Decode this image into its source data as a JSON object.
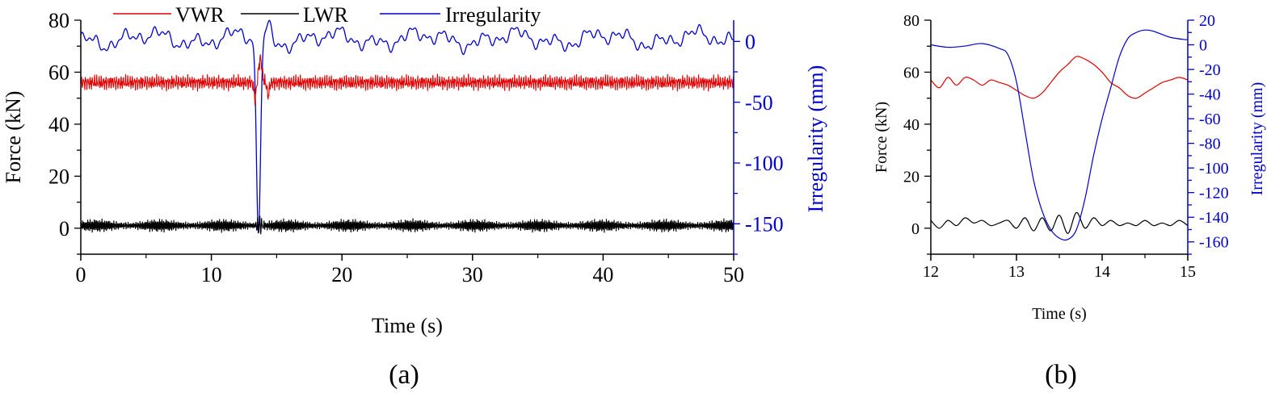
{
  "legend": {
    "vwr": "VWR",
    "lwr": "LWR",
    "irregularity": "Irregularity"
  },
  "colors": {
    "vwr": "#e00000",
    "lwr": "#000000",
    "irregularity": "#0000cc"
  },
  "chart_data": [
    {
      "type": "line",
      "panel_label": "(a)",
      "xlabel": "Time (s)",
      "ylabel_left": "Force (kN)",
      "ylabel_right": "Irregularity (mm)",
      "xlim": [
        0,
        50
      ],
      "ylim_left": [
        -10,
        80
      ],
      "ylim_right": [
        -175,
        17.5
      ],
      "x_ticks": [
        0,
        10,
        20,
        30,
        40,
        50
      ],
      "y_ticks_left": [
        0,
        20,
        40,
        60,
        80
      ],
      "y_ticks_right": [
        0,
        -50,
        -100,
        -150
      ],
      "legend_position": "top",
      "series": [
        {
          "name": "VWR",
          "axis": "left",
          "color": "red",
          "description_values": {
            "baseline": 56,
            "noise_amplitude": 2,
            "peak_at_13.7": 66,
            "dip_at_13.4": 50
          }
        },
        {
          "name": "LWR",
          "axis": "left",
          "color": "black",
          "description_values": {
            "baseline": 1,
            "oscillation_amplitude": 3,
            "peak_at_13.7": 6,
            "min": -2
          }
        },
        {
          "name": "Irregularity",
          "axis": "right",
          "color": "blue",
          "description_values": {
            "baseline": 0,
            "range_normal": [
              -10,
              8
            ],
            "min_at_13.6": -157,
            "max_at_14.5": 12
          }
        }
      ]
    },
    {
      "type": "line",
      "panel_label": "(b)",
      "xlabel": "Time (s)",
      "ylabel_left": "Force (kN)",
      "ylabel_right": "Irregularity (mm)",
      "xlim": [
        12,
        15
      ],
      "ylim_left": [
        -10,
        80
      ],
      "ylim_right": [
        -170,
        20
      ],
      "x_ticks": [
        12,
        13,
        14,
        15
      ],
      "y_ticks_left": [
        0,
        20,
        40,
        60,
        80
      ],
      "y_ticks_right": [
        20,
        0,
        -20,
        -40,
        -60,
        -80,
        -100,
        -120,
        -140,
        -160
      ],
      "series": [
        {
          "name": "VWR",
          "axis": "left",
          "color": "red",
          "points": [
            [
              12,
              57
            ],
            [
              12.1,
              54
            ],
            [
              12.2,
              58
            ],
            [
              12.3,
              55
            ],
            [
              12.4,
              58
            ],
            [
              12.5,
              57
            ],
            [
              12.6,
              55
            ],
            [
              12.7,
              57
            ],
            [
              12.8,
              56
            ],
            [
              12.9,
              55
            ],
            [
              13.0,
              53
            ],
            [
              13.1,
              51
            ],
            [
              13.2,
              50
            ],
            [
              13.3,
              52
            ],
            [
              13.4,
              56
            ],
            [
              13.5,
              60
            ],
            [
              13.6,
              63
            ],
            [
              13.7,
              66
            ],
            [
              13.8,
              65
            ],
            [
              13.9,
              63
            ],
            [
              14.0,
              60
            ],
            [
              14.1,
              56
            ],
            [
              14.2,
              54
            ],
            [
              14.3,
              51
            ],
            [
              14.4,
              50
            ],
            [
              14.5,
              52
            ],
            [
              14.6,
              54
            ],
            [
              14.7,
              56
            ],
            [
              14.8,
              57
            ],
            [
              14.9,
              58
            ],
            [
              15.0,
              57
            ]
          ]
        },
        {
          "name": "LWR",
          "axis": "left",
          "color": "black",
          "points": [
            [
              12,
              3
            ],
            [
              12.1,
              0
            ],
            [
              12.2,
              3
            ],
            [
              12.3,
              1
            ],
            [
              12.4,
              4
            ],
            [
              12.5,
              2
            ],
            [
              12.6,
              3
            ],
            [
              12.7,
              1
            ],
            [
              12.8,
              2
            ],
            [
              12.9,
              3
            ],
            [
              13.0,
              0
            ],
            [
              13.1,
              4
            ],
            [
              13.2,
              -1
            ],
            [
              13.3,
              4
            ],
            [
              13.4,
              -1
            ],
            [
              13.5,
              5
            ],
            [
              13.6,
              -2
            ],
            [
              13.7,
              6
            ],
            [
              13.8,
              0
            ],
            [
              13.9,
              4
            ],
            [
              14.0,
              1
            ],
            [
              14.1,
              3
            ],
            [
              14.2,
              1
            ],
            [
              14.3,
              2
            ],
            [
              14.4,
              1
            ],
            [
              14.5,
              3
            ],
            [
              14.6,
              1
            ],
            [
              14.7,
              2
            ],
            [
              14.8,
              1
            ],
            [
              14.9,
              3
            ],
            [
              15.0,
              1
            ]
          ]
        },
        {
          "name": "Irregularity",
          "axis": "right",
          "color": "blue",
          "points": [
            [
              12,
              0
            ],
            [
              12.2,
              -2
            ],
            [
              12.4,
              -1
            ],
            [
              12.6,
              1
            ],
            [
              12.8,
              -3
            ],
            [
              12.9,
              -8
            ],
            [
              13.0,
              -30
            ],
            [
              13.1,
              -70
            ],
            [
              13.2,
              -110
            ],
            [
              13.3,
              -135
            ],
            [
              13.4,
              -150
            ],
            [
              13.5,
              -157
            ],
            [
              13.6,
              -158
            ],
            [
              13.7,
              -150
            ],
            [
              13.8,
              -125
            ],
            [
              13.9,
              -90
            ],
            [
              14.0,
              -60
            ],
            [
              14.1,
              -35
            ],
            [
              14.2,
              -10
            ],
            [
              14.3,
              5
            ],
            [
              14.4,
              10
            ],
            [
              14.5,
              12
            ],
            [
              14.6,
              11
            ],
            [
              14.8,
              6
            ],
            [
              15.0,
              4
            ]
          ]
        }
      ]
    }
  ]
}
